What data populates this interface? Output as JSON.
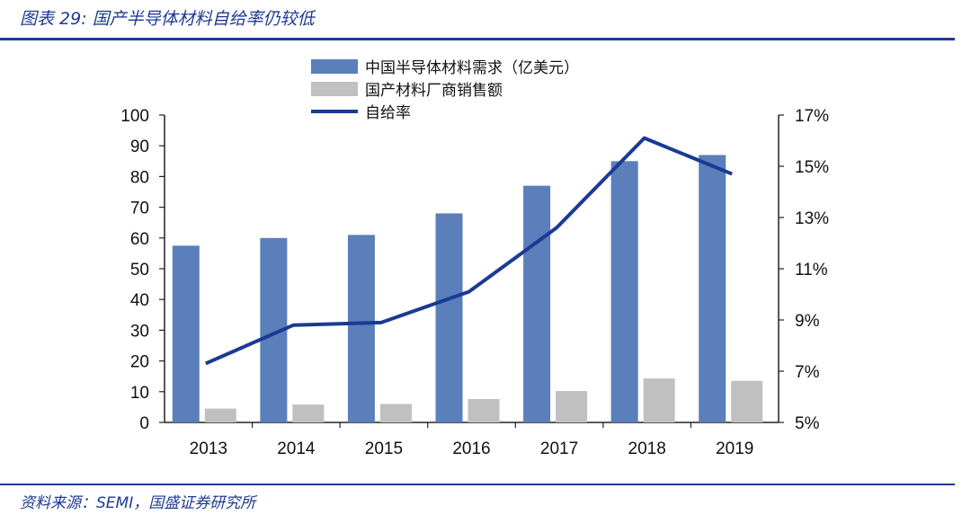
{
  "figure": {
    "title": "图表 29:  国产半导体材料自给率仍较低",
    "source": "资料来源：SEMI，国盛证券研究所"
  },
  "colors": {
    "demand": "#5b7fba",
    "sales": "#c0c0c0",
    "ratio": "#1a3a94",
    "title": "#1f3a93"
  },
  "chart_data": {
    "type": "bar",
    "categories": [
      "2013",
      "2014",
      "2015",
      "2016",
      "2017",
      "2018",
      "2019"
    ],
    "series": [
      {
        "name": "中国半导体材料需求（亿美元）",
        "type": "bar",
        "axis": "left",
        "values": [
          57.5,
          60,
          61,
          68,
          77,
          85,
          87
        ]
      },
      {
        "name": "国产材料厂商销售额",
        "type": "bar",
        "axis": "left",
        "values": [
          4.5,
          5.8,
          6,
          7.6,
          10.2,
          14.3,
          13.5
        ]
      },
      {
        "name": "自给率",
        "type": "line",
        "axis": "right",
        "values": [
          7.3,
          8.8,
          8.9,
          10.1,
          12.6,
          16.1,
          14.7
        ]
      }
    ],
    "y_left": {
      "min": 0,
      "max": 100,
      "ticks": [
        "0",
        "10",
        "20",
        "30",
        "40",
        "50",
        "60",
        "70",
        "80",
        "90",
        "100"
      ]
    },
    "y_right": {
      "min": 5,
      "max": 17,
      "ticks": [
        "5%",
        "7%",
        "9%",
        "11%",
        "13%",
        "15%",
        "17%"
      ]
    },
    "legend": "top-center",
    "grid": false
  }
}
